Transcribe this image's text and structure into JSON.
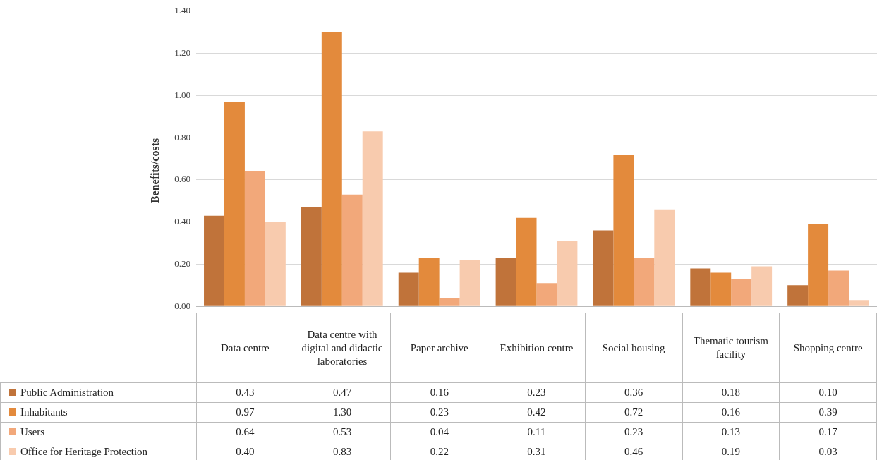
{
  "chart_data": {
    "type": "bar",
    "ylabel": "Benefits/costs",
    "categories": [
      "Data centre",
      "Data centre with digital and didactic laboratories",
      "Paper archive",
      "Exhibition centre",
      "Social housing",
      "Thematic tourism facility",
      "Shopping centre"
    ],
    "series": [
      {
        "name": "Public Administration",
        "color": "#c0733a",
        "values": [
          0.43,
          0.47,
          0.16,
          0.23,
          0.36,
          0.18,
          0.1
        ],
        "value_labels": [
          "0.43",
          "0.47",
          "0.16",
          "0.23",
          "0.36",
          "0.18",
          "0.10"
        ]
      },
      {
        "name": "Inhabitants",
        "color": "#e38a3c",
        "values": [
          0.97,
          1.3,
          0.23,
          0.42,
          0.72,
          0.16,
          0.39
        ],
        "value_labels": [
          "0.97",
          "1.30",
          "0.23",
          "0.42",
          "0.72",
          "0.16",
          "0.39"
        ]
      },
      {
        "name": "Users",
        "color": "#f2a87a",
        "values": [
          0.64,
          0.53,
          0.04,
          0.11,
          0.23,
          0.13,
          0.17
        ],
        "value_labels": [
          "0.64",
          "0.53",
          "0.04",
          "0.11",
          "0.23",
          "0.13",
          "0.17"
        ]
      },
      {
        "name": "Office for Heritage Protection",
        "color": "#f8cbae",
        "values": [
          0.4,
          0.83,
          0.22,
          0.31,
          0.46,
          0.19,
          0.03
        ],
        "value_labels": [
          "0.40",
          "0.83",
          "0.22",
          "0.31",
          "0.46",
          "0.19",
          "0.03"
        ]
      }
    ],
    "ylim": [
      0,
      1.4
    ],
    "yticks": [
      {
        "value": 0,
        "label": "0.00"
      },
      {
        "value": 0.2,
        "label": "0.20"
      },
      {
        "value": 0.4,
        "label": "0.40"
      },
      {
        "value": 0.6,
        "label": "0.60"
      },
      {
        "value": 0.8,
        "label": "0.80"
      },
      {
        "value": 1,
        "label": "1.00"
      },
      {
        "value": 1.2,
        "label": "1.20"
      },
      {
        "value": 1.4,
        "label": "1.40"
      }
    ],
    "grid": "y",
    "legend": "bottom"
  }
}
